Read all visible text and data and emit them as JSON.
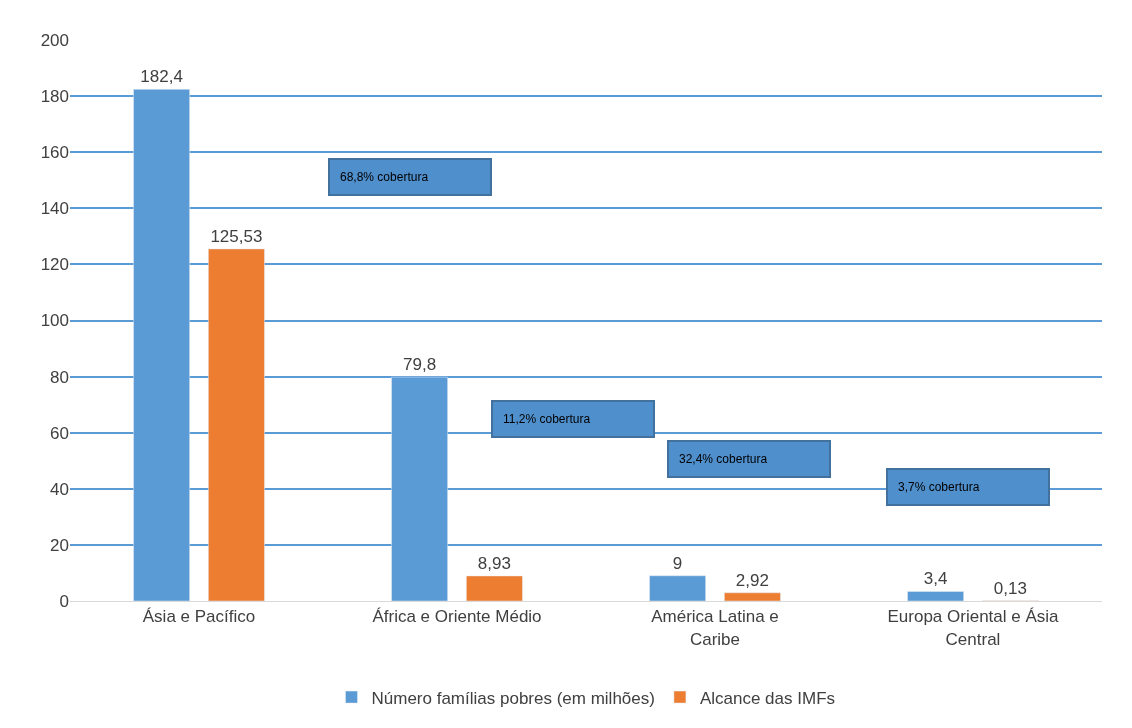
{
  "chart_data": {
    "type": "bar",
    "categories": [
      "Ásia e Pacífico",
      "África e Oriente Médio",
      "América Latina e Caribe",
      "Europa Oriental e Ásia Central"
    ],
    "series": [
      {
        "name": "Número famílias pobres (em milhões)",
        "color": "#5b9bd5",
        "values": [
          182.4,
          79.8,
          9,
          3.4
        ],
        "value_labels": [
          "182,4",
          "79,8",
          "9",
          "3,4"
        ]
      },
      {
        "name": "Alcance das IMFs",
        "color": "#ed7d31",
        "values": [
          125.53,
          8.93,
          2.92,
          0.13
        ],
        "value_labels": [
          "125,53",
          "8,93",
          "2,92",
          "0,13"
        ]
      }
    ],
    "ylim": [
      0,
      200
    ],
    "yticks": [
      0,
      20,
      40,
      60,
      80,
      100,
      120,
      140,
      160,
      180,
      200
    ],
    "grid": "y",
    "legend": "bottom",
    "annotations": [
      "68,8% cobertura",
      "11,2% cobertura",
      "32,4% cobertura",
      "3,7% cobertura"
    ]
  }
}
